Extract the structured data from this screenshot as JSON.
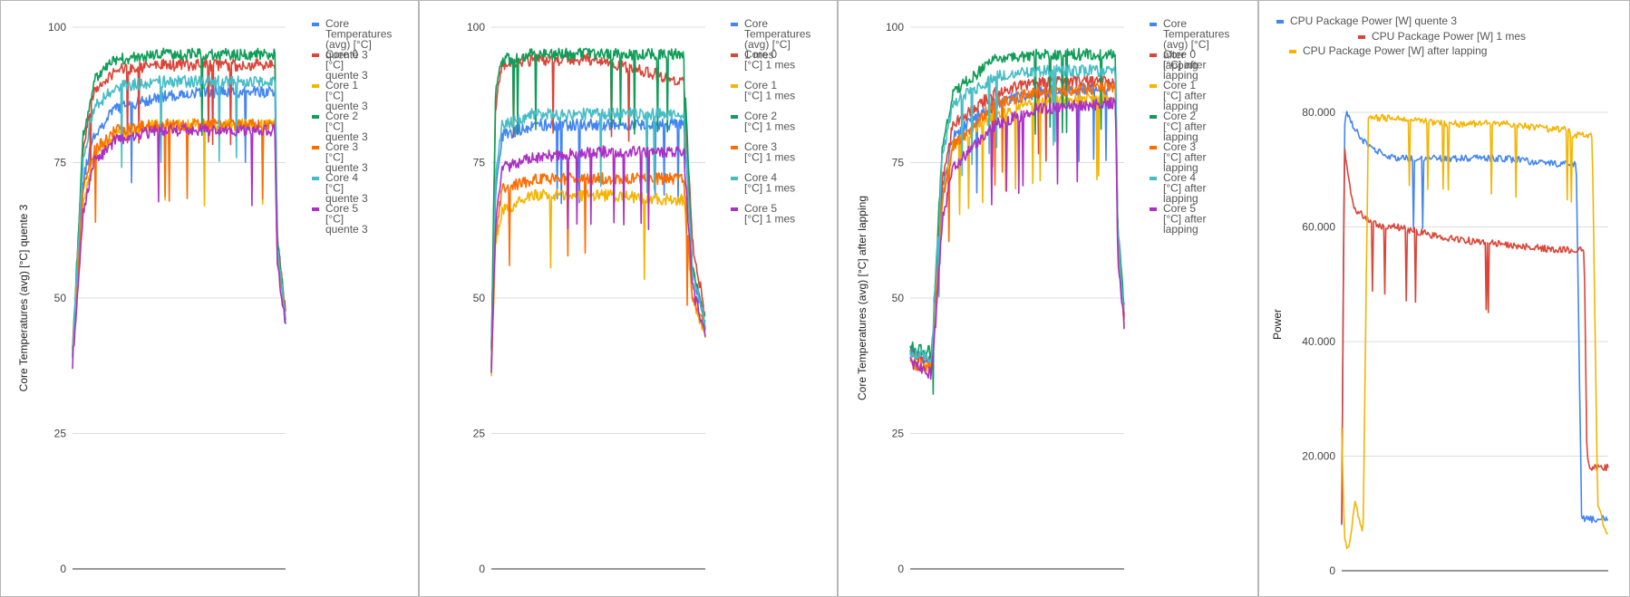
{
  "chart_data": [
    {
      "type": "line",
      "ylabel": "Core Temperatures (avg) [°C] quente 3",
      "ylim": [
        0,
        100
      ],
      "yticks": [
        "0",
        "25",
        "50",
        "75",
        "100"
      ],
      "grid": true,
      "legend_position": "right",
      "x": [
        0,
        5,
        10,
        20,
        40,
        60,
        95,
        96,
        100
      ],
      "series": [
        {
          "name": "Core Temperatures (avg) [°C] quente 3",
          "color": "#4285f4",
          "values": [
            40,
            72,
            80,
            85,
            87,
            88,
            88,
            60,
            46
          ]
        },
        {
          "name": "Core 0 [°C] quente 3",
          "color": "#db4437",
          "values": [
            40,
            78,
            88,
            92,
            93,
            93,
            93,
            62,
            47
          ]
        },
        {
          "name": "Core 1 [°C] quente 3",
          "color": "#f4b400",
          "values": [
            40,
            68,
            76,
            80,
            82,
            82,
            82,
            58,
            46
          ]
        },
        {
          "name": "Core 2 [°C] quente 3",
          "color": "#0f9d58",
          "values": [
            40,
            80,
            90,
            94,
            95,
            95,
            95,
            62,
            47
          ]
        },
        {
          "name": "Core 3 [°C] quente 3",
          "color": "#ff6d01",
          "values": [
            40,
            70,
            77,
            81,
            82,
            82,
            82,
            58,
            46
          ]
        },
        {
          "name": "Core 4 [°C] quente 3",
          "color": "#46bdc6",
          "values": [
            40,
            76,
            85,
            89,
            90,
            90,
            90,
            60,
            46
          ]
        },
        {
          "name": "Core 5 [°C] quente 3",
          "color": "#ab30c4",
          "values": [
            38,
            66,
            75,
            79,
            81,
            81,
            81,
            57,
            45
          ]
        }
      ]
    },
    {
      "type": "line",
      "ylim": [
        0,
        100
      ],
      "yticks": [
        "0",
        "25",
        "50",
        "75",
        "100"
      ],
      "grid": true,
      "legend_position": "right",
      "x": [
        0,
        2,
        5,
        20,
        50,
        90,
        94,
        100
      ],
      "series": [
        {
          "name": "Core Temperatures (avg) [°C] 1 mes",
          "color": "#4285f4",
          "values": [
            38,
            70,
            80,
            82,
            82,
            82,
            55,
            45
          ]
        },
        {
          "name": "Core 0 [°C] 1 mes",
          "color": "#db4437",
          "values": [
            40,
            85,
            93,
            94,
            94,
            90,
            60,
            47
          ]
        },
        {
          "name": "Core 1 [°C] 1 mes",
          "color": "#f4b400",
          "values": [
            36,
            60,
            66,
            69,
            69,
            68,
            50,
            43
          ]
        },
        {
          "name": "Core 2 [°C] 1 mes",
          "color": "#0f9d58",
          "values": [
            40,
            88,
            94,
            95,
            95,
            95,
            55,
            46
          ]
        },
        {
          "name": "Core 3 [°C] 1 mes",
          "color": "#ff6d01",
          "values": [
            38,
            62,
            70,
            72,
            72,
            72,
            50,
            44
          ]
        },
        {
          "name": "Core 4 [°C] 1 mes",
          "color": "#46bdc6",
          "values": [
            38,
            72,
            82,
            84,
            84,
            84,
            55,
            45
          ]
        },
        {
          "name": "Core 5 [°C] 1 mes",
          "color": "#ab30c4",
          "values": [
            36,
            64,
            74,
            76,
            77,
            77,
            52,
            43
          ]
        }
      ]
    },
    {
      "type": "line",
      "ylabel": "Core Temperatures (avg) [°C] after lapping",
      "ylim": [
        0,
        100
      ],
      "yticks": [
        "0",
        "25",
        "50",
        "75",
        "100"
      ],
      "grid": true,
      "legend_position": "right",
      "x": [
        0,
        10,
        12,
        15,
        20,
        40,
        60,
        96,
        97,
        100
      ],
      "series": [
        {
          "name": "Core Temperatures (avg) [°C] after lapping",
          "color": "#4285f4",
          "values": [
            40,
            38,
            50,
            70,
            80,
            86,
            88,
            89,
            62,
            47
          ]
        },
        {
          "name": "Core 0 [°C] after lapping",
          "color": "#db4437",
          "values": [
            40,
            38,
            52,
            72,
            82,
            88,
            90,
            90,
            62,
            47
          ]
        },
        {
          "name": "Core 1 [°C] after lapping",
          "color": "#f4b400",
          "values": [
            38,
            37,
            48,
            68,
            78,
            84,
            86,
            87,
            60,
            46
          ]
        },
        {
          "name": "Core 2 [°C] after lapping",
          "color": "#0f9d58",
          "values": [
            41,
            40,
            56,
            78,
            88,
            94,
            95,
            95,
            64,
            48
          ]
        },
        {
          "name": "Core 3 [°C] after lapping",
          "color": "#ff6d01",
          "values": [
            38,
            37,
            48,
            68,
            78,
            86,
            88,
            89,
            60,
            46
          ]
        },
        {
          "name": "Core 4 [°C] after lapping",
          "color": "#46bdc6",
          "values": [
            40,
            39,
            54,
            76,
            86,
            91,
            92,
            92,
            63,
            47
          ]
        },
        {
          "name": "Core 5 [°C] after lapping",
          "color": "#ab30c4",
          "values": [
            38,
            36,
            46,
            64,
            74,
            82,
            85,
            86,
            58,
            45
          ]
        }
      ]
    },
    {
      "type": "line",
      "ylabel": "Power",
      "ylim": [
        0,
        86
      ],
      "yticks": [
        "0",
        "20.000",
        "40.000",
        "60.000",
        "80.000"
      ],
      "grid": true,
      "legend_position": "top",
      "x": [
        0,
        1,
        2,
        3,
        5,
        8,
        10,
        15,
        20,
        40,
        60,
        80,
        84,
        85,
        86,
        87,
        88,
        89,
        90,
        91,
        92,
        93,
        94,
        96,
        99,
        100
      ],
      "series": [
        {
          "name": "CPU Package Power [W] quente 3",
          "color": "#4285f4",
          "values": [
            8,
            78,
            80,
            79,
            77,
            75,
            74,
            73,
            72,
            72,
            72,
            71,
            71,
            71,
            71,
            71,
            71,
            40,
            10,
            9,
            9,
            9,
            9,
            9,
            9,
            9
          ]
        },
        {
          "name": "CPU Package Power [W] 1 mes",
          "color": "#db4437",
          "values": [
            8,
            74,
            70,
            67,
            63,
            62,
            61,
            60,
            60,
            58,
            57,
            56,
            56,
            56,
            56,
            56,
            56,
            56,
            56,
            56,
            20,
            18,
            18,
            18,
            18,
            18
          ]
        },
        {
          "name": "CPU Package Power [W] after lapping",
          "color": "#f4b400",
          "values": [
            25,
            6,
            4,
            5,
            12,
            6,
            79,
            79,
            79,
            78,
            78,
            77,
            77,
            77,
            76,
            76,
            76,
            76,
            76,
            76,
            76,
            76,
            76,
            12,
            7,
            6
          ]
        }
      ]
    }
  ]
}
